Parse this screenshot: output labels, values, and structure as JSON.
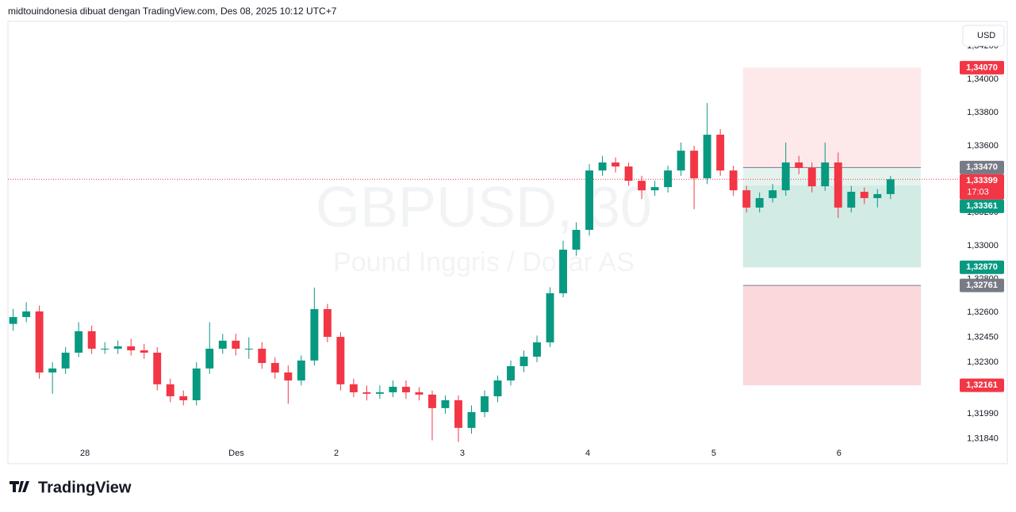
{
  "header": {
    "text": "midtouindonesia dibuat dengan TradingView.com, Des 08, 2025 10:12 UTC+7"
  },
  "currency_button": "USD",
  "footer": {
    "logo": "TradingView"
  },
  "chart_data": {
    "type": "candlestick",
    "title": "GBPUSD, 30",
    "subtitle": "Pound Inggris / Dollar AS",
    "up_color": "#089981",
    "down_color": "#f23645",
    "grid": false,
    "xlim": [
      0,
      362.8
    ],
    "ylim": [
      1.3169,
      1.34348
    ],
    "xticks": [
      {
        "value": 29.4,
        "label": "28"
      },
      {
        "value": 87.2,
        "label": "Des"
      },
      {
        "value": 125.4,
        "label": "2"
      },
      {
        "value": 173.5,
        "label": "3"
      },
      {
        "value": 221.4,
        "label": "4"
      },
      {
        "value": 269.5,
        "label": "5"
      },
      {
        "value": 317.3,
        "label": "6"
      }
    ],
    "yticks": [
      {
        "value": 1.342,
        "label": "1,34200"
      },
      {
        "value": 1.34,
        "label": "1,34000"
      },
      {
        "value": 1.338,
        "label": "1,33800"
      },
      {
        "value": 1.336,
        "label": "1,33600"
      },
      {
        "value": 1.332,
        "label": "1,33200"
      },
      {
        "value": 1.33,
        "label": "1,33000"
      },
      {
        "value": 1.328,
        "label": "1,32800"
      },
      {
        "value": 1.326,
        "label": "1,32600"
      },
      {
        "value": 1.3245,
        "label": "1,32450"
      },
      {
        "value": 1.323,
        "label": "1,32300"
      },
      {
        "value": 1.3199,
        "label": "1,31990"
      },
      {
        "value": 1.3184,
        "label": "1,31840"
      }
    ],
    "x": [
      2,
      7,
      12,
      17,
      22,
      27,
      32,
      37,
      42,
      47,
      52,
      57,
      62,
      67,
      72,
      77,
      82,
      87,
      92,
      97,
      102,
      107,
      112,
      117,
      122,
      127,
      132,
      137,
      142,
      147,
      152,
      157,
      162,
      167,
      172,
      177,
      182,
      187,
      192,
      197,
      202,
      207,
      212,
      217,
      222,
      227,
      232,
      237,
      242,
      247,
      252,
      257,
      262,
      267,
      272,
      277,
      282,
      287,
      292,
      297,
      302,
      307,
      312,
      317,
      322,
      327,
      332,
      337
    ],
    "open": [
      1.3253,
      1.32571,
      1.32605,
      1.32238,
      1.32262,
      1.32357,
      1.32486,
      1.32381,
      1.32381,
      1.32395,
      1.32371,
      1.32357,
      1.32167,
      1.32095,
      1.32071,
      1.32262,
      1.32381,
      1.32429,
      1.32381,
      1.32381,
      1.32295,
      1.32238,
      1.3219,
      1.3231,
      1.32619,
      1.32452,
      1.32167,
      1.32119,
      1.3211,
      1.32119,
      1.32152,
      1.32119,
      1.32105,
      1.32024,
      1.32071,
      1.31905,
      1.32,
      1.32095,
      1.3219,
      1.32276,
      1.32333,
      1.32419,
      1.32714,
      1.32976,
      1.33095,
      1.33452,
      1.335,
      1.33476,
      1.3339,
      1.33333,
      1.33352,
      1.33452,
      1.33571,
      1.33405,
      1.33667,
      1.33452,
      1.33333,
      1.33229,
      1.33286,
      1.33333,
      1.335,
      1.33467,
      1.33357,
      1.335,
      1.33229,
      1.33324,
      1.33286,
      1.3331
    ],
    "high": [
      1.3262,
      1.3266,
      1.3264,
      1.323,
      1.3239,
      1.3254,
      1.3252,
      1.3242,
      1.3243,
      1.3244,
      1.3241,
      1.3239,
      1.322,
      1.3213,
      1.323,
      1.3254,
      1.3247,
      1.3247,
      1.3245,
      1.3242,
      1.3233,
      1.3228,
      1.3234,
      1.32748,
      1.3265,
      1.3248,
      1.322,
      1.3216,
      1.3216,
      1.3219,
      1.3219,
      1.3215,
      1.3213,
      1.321,
      1.321,
      1.3204,
      1.3213,
      1.3222,
      1.3231,
      1.3237,
      1.3246,
      1.3275,
      1.3303,
      1.3314,
      1.3349,
      1.3354,
      1.3353,
      1.335,
      1.3342,
      1.3339,
      1.3348,
      1.3362,
      1.336,
      1.33857,
      1.337,
      1.3348,
      1.3336,
      1.3332,
      1.3337,
      1.3362,
      1.3354,
      1.335,
      1.3362,
      1.3356,
      1.3336,
      1.3335,
      1.3334,
      1.3342
    ],
    "low": [
      1.3249,
      1.3254,
      1.322,
      1.3211,
      1.3223,
      1.3233,
      1.3235,
      1.3235,
      1.3235,
      1.3234,
      1.3232,
      1.3213,
      1.3206,
      1.3204,
      1.3204,
      1.3223,
      1.3235,
      1.3234,
      1.3232,
      1.3226,
      1.322,
      1.3205,
      1.3216,
      1.3228,
      1.3242,
      1.3213,
      1.3209,
      1.3207,
      1.3208,
      1.3209,
      1.3208,
      1.3207,
      1.3183,
      1.3199,
      1.3182,
      1.3187,
      1.3197,
      1.3206,
      1.3216,
      1.3224,
      1.323,
      1.3239,
      1.3269,
      1.3294,
      1.3306,
      1.3342,
      1.3344,
      1.3336,
      1.3328,
      1.333,
      1.3332,
      1.3342,
      1.3322,
      1.3337,
      1.3342,
      1.333,
      1.332,
      1.332,
      1.3326,
      1.333,
      1.3343,
      1.3332,
      1.3333,
      1.33167,
      1.332,
      1.3325,
      1.3323,
      1.3328
    ],
    "close": [
      1.32571,
      1.32605,
      1.32238,
      1.32262,
      1.32357,
      1.32486,
      1.32381,
      1.32381,
      1.32395,
      1.32371,
      1.32357,
      1.32167,
      1.32095,
      1.32071,
      1.32262,
      1.32381,
      1.32429,
      1.32381,
      1.32381,
      1.32295,
      1.32238,
      1.3219,
      1.3231,
      1.32619,
      1.32452,
      1.32167,
      1.32119,
      1.3211,
      1.32119,
      1.32152,
      1.32119,
      1.32105,
      1.32024,
      1.32071,
      1.31905,
      1.32,
      1.32095,
      1.3219,
      1.32276,
      1.32333,
      1.32419,
      1.32714,
      1.32976,
      1.33095,
      1.33452,
      1.335,
      1.33476,
      1.3339,
      1.33333,
      1.33352,
      1.33452,
      1.33571,
      1.33405,
      1.33667,
      1.33452,
      1.33333,
      1.33229,
      1.33286,
      1.33333,
      1.335,
      1.33467,
      1.33357,
      1.335,
      1.33229,
      1.33324,
      1.33286,
      1.3331,
      1.33399
    ],
    "zones": [
      {
        "x": [
          280.7,
          348.6
        ],
        "y": [
          1.3347,
          1.3407
        ],
        "color": "#fde9ea"
      },
      {
        "x": [
          280.7,
          348.6
        ],
        "y": [
          1.3287,
          1.3347
        ],
        "color": "#e5f3ef"
      },
      {
        "x": [
          280.7,
          348.6
        ],
        "y": [
          1.3287,
          1.33361
        ],
        "color": "#d2ebe5"
      },
      {
        "x": [
          280.7,
          348.6
        ],
        "y": [
          1.32161,
          1.32761
        ],
        "color": "#fbd8db"
      }
    ],
    "lines": [
      {
        "value": 1.3347,
        "x": [
          280.7,
          348.6
        ],
        "color": "#787b86"
      },
      {
        "value": 1.32761,
        "x": [
          280.7,
          348.6
        ],
        "color": "#787b86"
      }
    ],
    "levels": [
      {
        "value": 1.3407,
        "label": "1,34070",
        "color": "#f23645"
      },
      {
        "value": 1.3347,
        "label": "1,33470",
        "color": "#787b86"
      },
      {
        "value": 1.33361,
        "label": "1,33361",
        "color": "#089981"
      },
      {
        "value": 1.3287,
        "label": "1,32870",
        "color": "#089981"
      },
      {
        "value": 1.32761,
        "label": "1,32761",
        "color": "#787b86"
      },
      {
        "value": 1.32161,
        "label": "1,32161",
        "color": "#f23645"
      }
    ],
    "current_price": {
      "value": 1.33399,
      "label": "1,33399",
      "countdown": "17:03",
      "color": "#f23645"
    }
  }
}
